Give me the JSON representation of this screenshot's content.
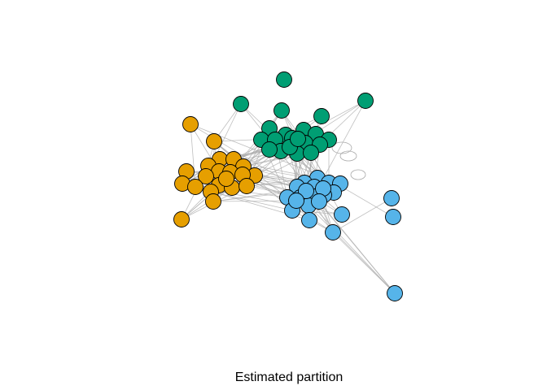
{
  "caption": "Estimated partition",
  "colors": {
    "green": "#009E73",
    "orange": "#E69F00",
    "blue": "#56B4E9",
    "edge": "#A9A9A9",
    "node_border": "#000000"
  },
  "clusters": [
    {
      "id": "green",
      "node_count": 21
    },
    {
      "id": "orange",
      "node_count": 21
    },
    {
      "id": "blue",
      "node_count": 23
    }
  ]
}
